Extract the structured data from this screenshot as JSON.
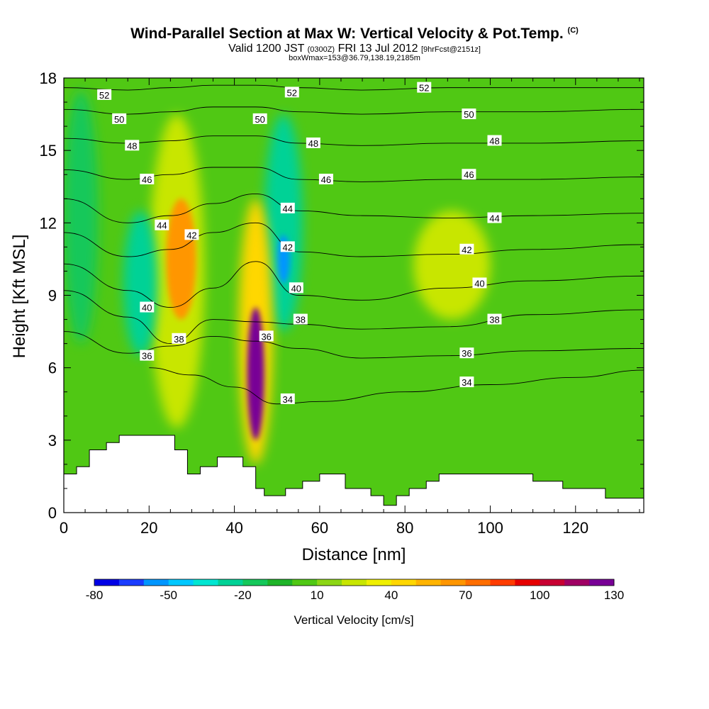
{
  "header": {
    "title_main": "Wind-Parallel Section at Max W: Vertical Velocity & Pot.Temp.",
    "title_mark": "(C)",
    "valid_prefix": "Valid 1200 JST",
    "valid_utc": "(0300Z)",
    "valid_date": "FRI 13 Jul 2012",
    "forecast": "[9hrFcst@2151z]",
    "box_info": "boxWmax=153@36.79,138.19,2185m"
  },
  "chart_data": {
    "type": "heatmap",
    "xlabel": "Distance [nm]",
    "ylabel": "Height [Kft MSL]",
    "xlim": [
      0,
      136
    ],
    "ylim": [
      0,
      18
    ],
    "x_ticks": [
      0,
      20,
      40,
      60,
      80,
      100,
      120
    ],
    "y_ticks": [
      0,
      3,
      6,
      9,
      12,
      15,
      18
    ],
    "colorbar": {
      "label": "Vertical Velocity [cm/s]",
      "tick_labels": [
        "-80",
        "-50",
        "-20",
        "10",
        "40",
        "70",
        "100",
        "130"
      ],
      "colors": [
        "#0000e6",
        "#1a3cff",
        "#0096ff",
        "#00c8ff",
        "#00e6d2",
        "#00d296",
        "#14c85a",
        "#1eb428",
        "#50c814",
        "#8cd614",
        "#c8e600",
        "#f0f000",
        "#ffd700",
        "#ffb400",
        "#ff9600",
        "#ff6e00",
        "#ff3c00",
        "#e60000",
        "#c80032",
        "#a00064",
        "#780096"
      ]
    },
    "theta_contours": [
      {
        "label": "34",
        "points": [
          [
            20,
            6.0
          ],
          [
            30,
            5.7
          ],
          [
            40,
            5.2
          ],
          [
            50,
            4.5
          ],
          [
            60,
            4.6
          ],
          [
            80,
            5.0
          ],
          [
            100,
            5.3
          ],
          [
            120,
            5.6
          ],
          [
            136,
            5.9
          ]
        ]
      },
      {
        "label": "36",
        "points": [
          [
            0,
            7.5
          ],
          [
            15,
            6.6
          ],
          [
            25,
            6.9
          ],
          [
            35,
            7.3
          ],
          [
            45,
            7.1
          ],
          [
            55,
            6.8
          ],
          [
            70,
            6.4
          ],
          [
            90,
            6.5
          ],
          [
            110,
            6.7
          ],
          [
            136,
            6.8
          ]
        ]
      },
      {
        "label": "38",
        "points": [
          [
            0,
            9.2
          ],
          [
            15,
            8.1
          ],
          [
            25,
            7.0
          ],
          [
            35,
            8.0
          ],
          [
            45,
            7.9
          ],
          [
            55,
            7.8
          ],
          [
            70,
            7.6
          ],
          [
            90,
            7.7
          ],
          [
            110,
            8.2
          ],
          [
            136,
            8.4
          ]
        ]
      },
      {
        "label": "40",
        "points": [
          [
            0,
            10.3
          ],
          [
            15,
            9.2
          ],
          [
            25,
            8.5
          ],
          [
            35,
            9.3
          ],
          [
            45,
            10.4
          ],
          [
            55,
            9.0
          ],
          [
            70,
            8.8
          ],
          [
            90,
            9.3
          ],
          [
            110,
            9.6
          ],
          [
            136,
            9.8
          ]
        ]
      },
      {
        "label": "42",
        "points": [
          [
            0,
            11.6
          ],
          [
            15,
            10.6
          ],
          [
            25,
            10.9
          ],
          [
            35,
            11.6
          ],
          [
            45,
            12.0
          ],
          [
            55,
            10.8
          ],
          [
            70,
            10.6
          ],
          [
            90,
            10.7
          ],
          [
            110,
            10.9
          ],
          [
            136,
            11.1
          ]
        ]
      },
      {
        "label": "44",
        "points": [
          [
            0,
            13.0
          ],
          [
            15,
            12.0
          ],
          [
            25,
            12.3
          ],
          [
            35,
            12.8
          ],
          [
            45,
            13.2
          ],
          [
            55,
            12.5
          ],
          [
            70,
            12.3
          ],
          [
            90,
            12.2
          ],
          [
            110,
            12.3
          ],
          [
            136,
            12.4
          ]
        ]
      },
      {
        "label": "46",
        "points": [
          [
            0,
            14.2
          ],
          [
            15,
            13.8
          ],
          [
            25,
            14.0
          ],
          [
            35,
            14.3
          ],
          [
            45,
            14.3
          ],
          [
            55,
            13.8
          ],
          [
            70,
            13.7
          ],
          [
            90,
            13.8
          ],
          [
            110,
            13.8
          ],
          [
            136,
            13.9
          ]
        ]
      },
      {
        "label": "48",
        "points": [
          [
            0,
            15.5
          ],
          [
            15,
            15.3
          ],
          [
            25,
            15.4
          ],
          [
            35,
            15.6
          ],
          [
            45,
            15.6
          ],
          [
            55,
            15.3
          ],
          [
            70,
            15.2
          ],
          [
            90,
            15.3
          ],
          [
            110,
            15.3
          ],
          [
            136,
            15.4
          ]
        ]
      },
      {
        "label": "50",
        "points": [
          [
            0,
            16.7
          ],
          [
            15,
            16.5
          ],
          [
            25,
            16.6
          ],
          [
            35,
            16.8
          ],
          [
            45,
            16.8
          ],
          [
            55,
            16.6
          ],
          [
            70,
            16.5
          ],
          [
            90,
            16.6
          ],
          [
            110,
            16.6
          ],
          [
            136,
            16.7
          ]
        ]
      },
      {
        "label": "52",
        "points": [
          [
            0,
            17.6
          ],
          [
            15,
            17.5
          ],
          [
            25,
            17.6
          ],
          [
            35,
            17.7
          ],
          [
            45,
            17.7
          ],
          [
            55,
            17.6
          ],
          [
            70,
            17.5
          ],
          [
            90,
            17.6
          ],
          [
            110,
            17.6
          ],
          [
            136,
            17.6
          ]
        ]
      }
    ],
    "contour_label_positions": [
      {
        "text": "52",
        "x": 9.5,
        "y": 17.3
      },
      {
        "text": "50",
        "x": 13,
        "y": 16.3
      },
      {
        "text": "48",
        "x": 16,
        "y": 15.2
      },
      {
        "text": "46",
        "x": 19.5,
        "y": 13.8
      },
      {
        "text": "44",
        "x": 23,
        "y": 11.9
      },
      {
        "text": "42",
        "x": 30,
        "y": 11.5
      },
      {
        "text": "40",
        "x": 19.5,
        "y": 8.5
      },
      {
        "text": "38",
        "x": 27,
        "y": 7.2
      },
      {
        "text": "36",
        "x": 19.5,
        "y": 6.5
      },
      {
        "text": "52",
        "x": 53.5,
        "y": 17.4
      },
      {
        "text": "50",
        "x": 46,
        "y": 16.3
      },
      {
        "text": "48",
        "x": 58.5,
        "y": 15.3
      },
      {
        "text": "46",
        "x": 61.5,
        "y": 13.8
      },
      {
        "text": "44",
        "x": 52.5,
        "y": 12.6
      },
      {
        "text": "42",
        "x": 52.5,
        "y": 11.0
      },
      {
        "text": "40",
        "x": 54.5,
        "y": 9.3
      },
      {
        "text": "38",
        "x": 55.5,
        "y": 8.0
      },
      {
        "text": "36",
        "x": 47.5,
        "y": 7.3
      },
      {
        "text": "34",
        "x": 52.5,
        "y": 4.7
      },
      {
        "text": "52",
        "x": 84.5,
        "y": 17.6
      },
      {
        "text": "50",
        "x": 95,
        "y": 16.5
      },
      {
        "text": "48",
        "x": 101,
        "y": 15.4
      },
      {
        "text": "46",
        "x": 95,
        "y": 14.0
      },
      {
        "text": "44",
        "x": 101,
        "y": 12.2
      },
      {
        "text": "42",
        "x": 94.5,
        "y": 10.9
      },
      {
        "text": "40",
        "x": 97.5,
        "y": 9.5
      },
      {
        "text": "38",
        "x": 101,
        "y": 8.0
      },
      {
        "text": "36",
        "x": 94.5,
        "y": 6.6
      },
      {
        "text": "34",
        "x": 94.5,
        "y": 5.4
      }
    ],
    "velocity_features": [
      {
        "kind": "updraft",
        "w": 20,
        "x": [
          20,
          33
        ],
        "y": [
          3.5,
          16.5
        ]
      },
      {
        "kind": "updraft-core",
        "w": 55,
        "x": [
          24,
          31
        ],
        "y": [
          8,
          13
        ]
      },
      {
        "kind": "downdraft",
        "w": -30,
        "x": [
          14,
          22
        ],
        "y": [
          6.5,
          12.5
        ]
      },
      {
        "kind": "downdraft",
        "w": -35,
        "x": [
          47,
          56
        ],
        "y": [
          7.5,
          16.5
        ]
      },
      {
        "kind": "downdraft-core",
        "w": -65,
        "x": [
          50,
          53
        ],
        "y": [
          9.5,
          11.5
        ]
      },
      {
        "kind": "updraft",
        "w": 40,
        "x": [
          41,
          49
        ],
        "y": [
          2,
          13
        ]
      },
      {
        "kind": "updraft-core",
        "w": 130,
        "x": [
          43,
          47
        ],
        "y": [
          3,
          8.5
        ]
      },
      {
        "kind": "updraft",
        "w": 15,
        "x": [
          82,
          100
        ],
        "y": [
          8,
          12.5
        ]
      },
      {
        "kind": "downdraft",
        "w": -20,
        "x": [
          0,
          8
        ],
        "y": [
          7,
          17.5
        ]
      }
    ],
    "terrain_profile": [
      [
        0,
        1.6
      ],
      [
        3,
        1.6
      ],
      [
        3,
        1.9
      ],
      [
        6,
        1.9
      ],
      [
        6,
        2.6
      ],
      [
        10,
        2.6
      ],
      [
        10,
        2.9
      ],
      [
        13,
        2.9
      ],
      [
        13,
        3.2
      ],
      [
        26,
        3.2
      ],
      [
        26,
        2.6
      ],
      [
        29,
        2.6
      ],
      [
        29,
        1.6
      ],
      [
        32,
        1.6
      ],
      [
        32,
        1.9
      ],
      [
        36,
        1.9
      ],
      [
        36,
        2.3
      ],
      [
        42,
        2.3
      ],
      [
        42,
        1.9
      ],
      [
        45,
        1.9
      ],
      [
        45,
        1.0
      ],
      [
        47,
        1.0
      ],
      [
        47,
        0.7
      ],
      [
        52,
        0.7
      ],
      [
        52,
        1.0
      ],
      [
        56,
        1.0
      ],
      [
        56,
        1.3
      ],
      [
        60,
        1.3
      ],
      [
        60,
        1.6
      ],
      [
        66,
        1.6
      ],
      [
        66,
        1.0
      ],
      [
        72,
        1.0
      ],
      [
        72,
        0.7
      ],
      [
        75,
        0.7
      ],
      [
        75,
        0.3
      ],
      [
        78,
        0.3
      ],
      [
        78,
        0.7
      ],
      [
        81,
        0.7
      ],
      [
        81,
        1.0
      ],
      [
        85,
        1.0
      ],
      [
        85,
        1.3
      ],
      [
        88,
        1.3
      ],
      [
        88,
        1.6
      ],
      [
        110,
        1.6
      ],
      [
        110,
        1.3
      ],
      [
        117,
        1.3
      ],
      [
        117,
        1.0
      ],
      [
        127,
        1.0
      ],
      [
        127,
        0.6
      ],
      [
        136,
        0.6
      ],
      [
        136,
        0
      ]
    ]
  }
}
